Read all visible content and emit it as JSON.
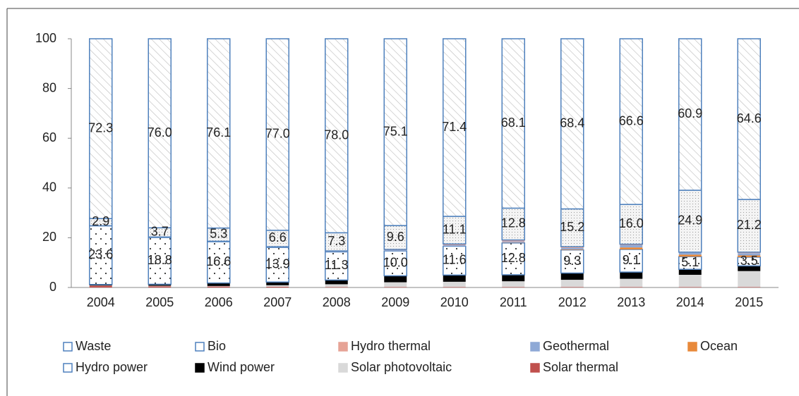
{
  "chart_data": {
    "type": "stacked_bar",
    "categories": [
      "2004",
      "2005",
      "2006",
      "2007",
      "2008",
      "2009",
      "2010",
      "2011",
      "2012",
      "2013",
      "2014",
      "2015"
    ],
    "ylim": [
      0,
      100
    ],
    "yticks": [
      0,
      20,
      40,
      60,
      80,
      100
    ],
    "grid": false,
    "legend": "bottom",
    "series": [
      {
        "name": "Waste",
        "color": "#ffffff",
        "pattern": "hatch",
        "values": [
          72.3,
          76,
          76.1,
          77,
          78,
          75.1,
          71.4,
          68.1,
          68.4,
          66.6,
          60.9,
          64.6
        ],
        "value_labels": [
          "72.3",
          "76.0",
          "76.1",
          "77.0",
          "78.0",
          "75.1",
          "71.4",
          "68.1",
          "68.4",
          "66.6",
          "60.9",
          "64.6"
        ]
      },
      {
        "name": "Bio",
        "color": "#ffffff",
        "pattern": "stipple",
        "values": [
          2.9,
          3.7,
          5.3,
          6.6,
          7.3,
          9.6,
          11.1,
          12.8,
          15.2,
          16,
          24.9,
          21.2
        ],
        "value_labels": [
          "2.9",
          "3.7",
          "5.3",
          "6.6",
          "7.3",
          "9.6",
          "11.1",
          "12.8",
          "15.2",
          "16.0",
          "24.9",
          "21.2"
        ]
      },
      {
        "name": "Hydro thermal",
        "color": "#e6a396",
        "values": [
          0,
          0.1,
          0.1,
          0.1,
          0.2,
          0.3,
          0.5,
          0.6,
          0.5,
          0.4,
          0.2,
          0.4
        ]
      },
      {
        "name": "Geothermal",
        "color": "#8ea9d6",
        "values": [
          0,
          0.1,
          0.1,
          0.2,
          0.2,
          0.3,
          0.4,
          0.5,
          0.6,
          0.9,
          0.8,
          0.9
        ]
      },
      {
        "name": "Ocean",
        "color": "#e8893a",
        "values": [
          0,
          0,
          0,
          0,
          0,
          0,
          0,
          0.1,
          0.2,
          0.8,
          0.8,
          0.7
        ]
      },
      {
        "name": "Hydro power",
        "color": "#ffffff",
        "pattern": "dots",
        "values": [
          23.6,
          18.8,
          16.6,
          13.9,
          11.3,
          10,
          11.6,
          12.8,
          9.3,
          9.1,
          5.1,
          3.5
        ],
        "value_labels": [
          "23.6",
          "18.8",
          "16.6",
          "13.9",
          "11.3",
          "10.0",
          "11.6",
          "12.8",
          "9.3",
          "9.1",
          "5.1",
          "3.5"
        ]
      },
      {
        "name": "Wind power",
        "color": "#000000",
        "values": [
          0.4,
          0.6,
          1.2,
          1.3,
          1.7,
          2.6,
          2.7,
          2.6,
          2.7,
          2.7,
          2.2,
          2.1
        ]
      },
      {
        "name": "Solar photovoltaic",
        "color": "#d9d9d9",
        "values": [
          0.1,
          0.2,
          0.2,
          0.6,
          1.1,
          1.9,
          2.1,
          2.3,
          2.9,
          3.3,
          4.9,
          6.4
        ]
      },
      {
        "name": "Solar thermal",
        "color": "#c0504d",
        "values": [
          0.7,
          0.5,
          0.4,
          0.3,
          0.2,
          0.2,
          0.2,
          0.2,
          0.2,
          0.2,
          0.2,
          0.2
        ]
      }
    ]
  }
}
